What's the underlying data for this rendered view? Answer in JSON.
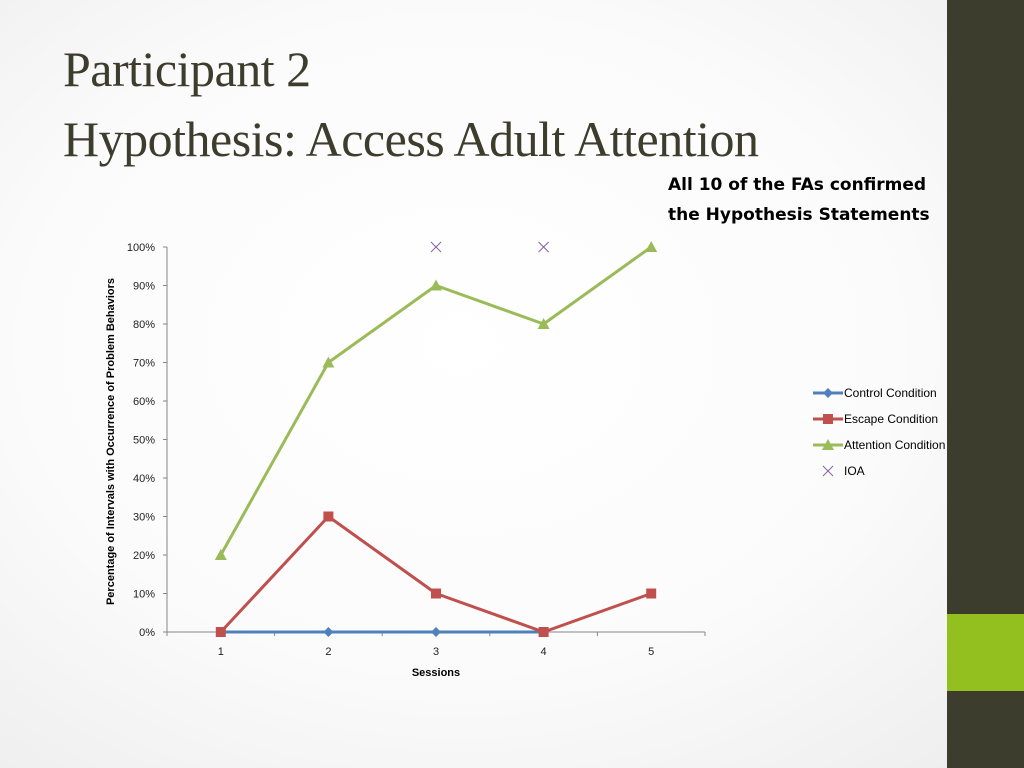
{
  "slide": {
    "title_line1": "Participant 2",
    "title_line2": "Hypothesis: Access Adult Attention",
    "note_line1": "All 10 of the FAs confirmed",
    "note_line2": "the Hypothesis Statements",
    "colors": {
      "sidebar": "#3d3d2d",
      "accent": "#93c01f",
      "title": "#3d3d2d"
    }
  },
  "chart_data": {
    "type": "line",
    "xlabel": "Sessions",
    "ylabel": "Percentage of Intervals with Occurrence of Problem Behaviors",
    "categories": [
      "1",
      "2",
      "3",
      "4",
      "5"
    ],
    "ylim": [
      0,
      100
    ],
    "y_ticks": [
      0,
      10,
      20,
      30,
      40,
      50,
      60,
      70,
      80,
      90,
      100
    ],
    "y_tick_suffix": "%",
    "grid": false,
    "legend_position": "right",
    "series": [
      {
        "name": "Control Condition",
        "color": "#4f81bd",
        "marker": "diamond",
        "line": true,
        "values": [
          0,
          0,
          0,
          0,
          null
        ]
      },
      {
        "name": "Escape Condition",
        "color": "#c0504d",
        "marker": "square",
        "line": true,
        "values": [
          0,
          30,
          10,
          0,
          10
        ]
      },
      {
        "name": "Attention Condition",
        "color": "#9bbb59",
        "marker": "triangle",
        "line": true,
        "values": [
          20,
          70,
          90,
          80,
          100
        ]
      },
      {
        "name": "IOA",
        "color": "#8064a2",
        "marker": "x",
        "line": false,
        "values": [
          null,
          null,
          100,
          100,
          null
        ]
      }
    ]
  }
}
